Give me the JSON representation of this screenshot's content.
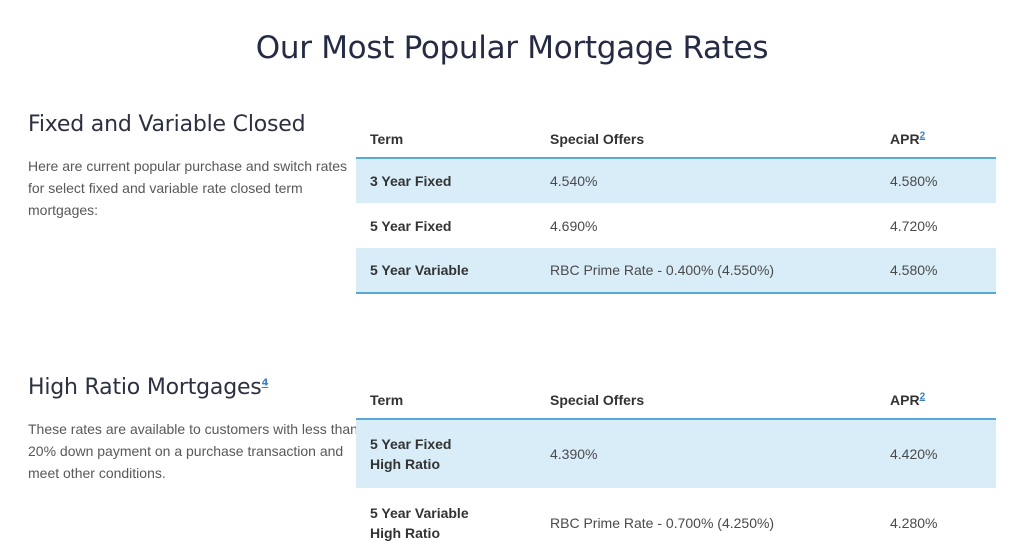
{
  "page": {
    "title": "Our Most Popular Mortgage Rates"
  },
  "colors": {
    "accent_border": "#58a8da",
    "row_highlight": "#d9edf9",
    "link": "#3a7fc2"
  },
  "sections": [
    {
      "heading": "Fixed and Variable Closed",
      "description": "Here are current popular purchase and switch rates for select fixed and variable rate closed term mortgages:",
      "table": {
        "headers": {
          "term": "Term",
          "offers": "Special Offers",
          "apr": "APR",
          "apr_footnote": "2"
        },
        "rows": [
          {
            "term": "3 Year Fixed",
            "offer": "4.540%",
            "apr": "4.580%"
          },
          {
            "term": "5 Year Fixed",
            "offer": "4.690%",
            "apr": "4.720%"
          },
          {
            "term": "5 Year Variable",
            "offer": "RBC Prime Rate - 0.400% (4.550%)",
            "apr": "4.580%"
          }
        ]
      }
    },
    {
      "heading": "High Ratio Mortgages",
      "heading_footnote": "4",
      "description": "These rates are available to customers with less than 20% down payment on a purchase transaction and meet other conditions.",
      "table": {
        "headers": {
          "term": "Term",
          "offers": "Special Offers",
          "apr": "APR",
          "apr_footnote": "2"
        },
        "rows": [
          {
            "term": "5 Year Fixed",
            "term_line2": "High Ratio",
            "offer": "4.390%",
            "apr": "4.420%"
          },
          {
            "term": "5 Year Variable",
            "term_line2": "High Ratio",
            "offer": "RBC Prime Rate - 0.700% (4.250%)",
            "apr": "4.280%"
          }
        ]
      }
    }
  ]
}
